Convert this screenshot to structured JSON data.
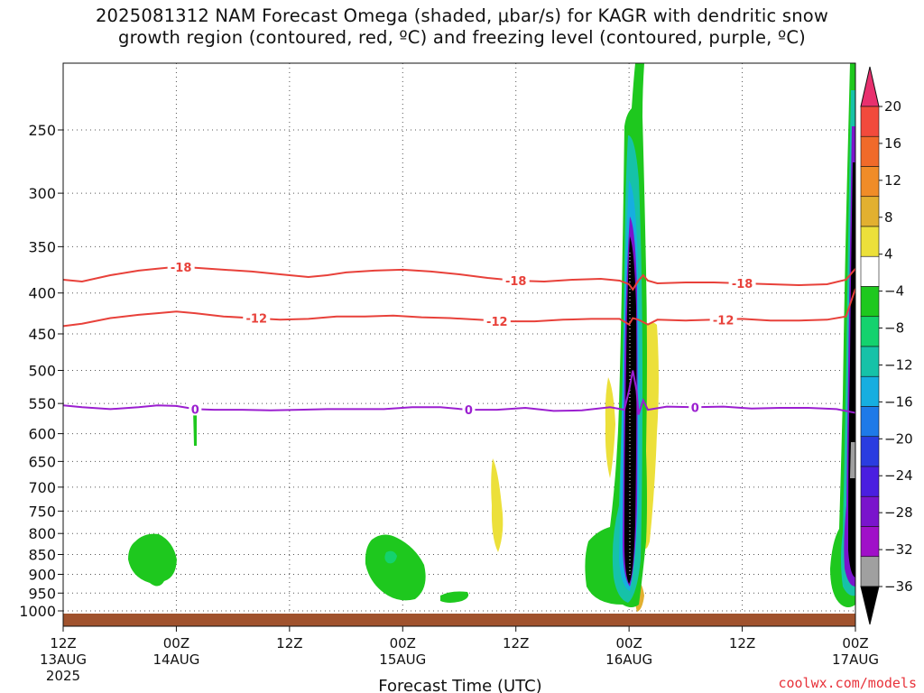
{
  "title_line1": "2025081312 NAM Forecast Omega (shaded, μbar/s) for KAGR with dendritic snow",
  "title_line2": "growth region (contoured, red, ºC) and freezing level (contoured, purple, ºC)",
  "x_axis_title": "Forecast Time (UTC)",
  "credit": "coolwx.com/models",
  "chart_data": {
    "type": "heatmap",
    "x_axis": {
      "unit": "forecast hour",
      "range": [
        0,
        84
      ],
      "ticks": [
        {
          "hour": 0,
          "l1": "12Z",
          "l2": "13AUG",
          "l3": "2025"
        },
        {
          "hour": 12,
          "l1": "00Z",
          "l2": "14AUG",
          "l3": ""
        },
        {
          "hour": 24,
          "l1": "12Z",
          "l2": "",
          "l3": ""
        },
        {
          "hour": 36,
          "l1": "00Z",
          "l2": "15AUG",
          "l3": ""
        },
        {
          "hour": 48,
          "l1": "12Z",
          "l2": "",
          "l3": ""
        },
        {
          "hour": 60,
          "l1": "00Z",
          "l2": "16AUG",
          "l3": ""
        },
        {
          "hour": 72,
          "l1": "12Z",
          "l2": "",
          "l3": ""
        },
        {
          "hour": 84,
          "l1": "00Z",
          "l2": "17AUG",
          "l3": ""
        }
      ]
    },
    "y_axis": {
      "unit": "mb",
      "scale": "pressure (inverted)",
      "range": [
        1040,
        200
      ],
      "ticks": [
        250,
        300,
        350,
        400,
        450,
        500,
        550,
        600,
        650,
        700,
        750,
        800,
        850,
        900,
        950,
        1000
      ]
    },
    "grid": true,
    "colorbar": {
      "unit": "μbar/s",
      "labels": [
        "20",
        "16",
        "12",
        "8",
        "4",
        "−4",
        "−8",
        "−12",
        "−16",
        "−20",
        "−24",
        "−28",
        "−32",
        "−36"
      ],
      "colors": [
        "#e8306e",
        "#f24a3c",
        "#f06a2a",
        "#f08c28",
        "#e2b030",
        "#ece03a",
        "#ffffff",
        "#1ec81e",
        "#14d26e",
        "#16c2a8",
        "#16aee0",
        "#1e7ae8",
        "#2a3ce0",
        "#4a1ee0",
        "#7a14cc",
        "#a010c8",
        "#a0a0a0",
        "#000000"
      ]
    },
    "contours": [
      {
        "label": "-18",
        "color": "#e8413a",
        "label_hours": [
          12.5,
          48,
          72
        ],
        "points": [
          [
            0,
            385
          ],
          [
            2,
            387
          ],
          [
            5,
            380
          ],
          [
            8,
            375
          ],
          [
            10,
            373
          ],
          [
            12,
            371
          ],
          [
            14,
            372
          ],
          [
            17,
            374
          ],
          [
            20,
            376
          ],
          [
            23,
            379
          ],
          [
            26,
            382
          ],
          [
            28,
            380
          ],
          [
            30,
            377
          ],
          [
            33,
            375
          ],
          [
            36,
            374
          ],
          [
            39,
            376
          ],
          [
            42,
            379
          ],
          [
            45,
            383
          ],
          [
            48,
            386
          ],
          [
            51,
            387
          ],
          [
            54,
            385
          ],
          [
            57,
            384
          ],
          [
            59,
            386
          ],
          [
            60,
            390
          ],
          [
            60.4,
            396
          ],
          [
            61,
            386
          ],
          [
            61.5,
            380
          ],
          [
            62,
            386
          ],
          [
            63,
            389
          ],
          [
            66,
            388
          ],
          [
            69,
            388
          ],
          [
            72,
            389
          ],
          [
            75,
            390
          ],
          [
            78,
            391
          ],
          [
            81,
            390
          ],
          [
            83,
            385
          ],
          [
            84,
            373
          ]
        ]
      },
      {
        "label": "-12",
        "color": "#e8413a",
        "label_hours": [
          20.5,
          46,
          70
        ],
        "points": [
          [
            0,
            440
          ],
          [
            2,
            437
          ],
          [
            5,
            430
          ],
          [
            8,
            426
          ],
          [
            10,
            424
          ],
          [
            12,
            422
          ],
          [
            14,
            424
          ],
          [
            17,
            428
          ],
          [
            20,
            430
          ],
          [
            23,
            432
          ],
          [
            26,
            431
          ],
          [
            29,
            428
          ],
          [
            32,
            428
          ],
          [
            35,
            427
          ],
          [
            38,
            429
          ],
          [
            41,
            430
          ],
          [
            44,
            432
          ],
          [
            47,
            434
          ],
          [
            50,
            434
          ],
          [
            53,
            432
          ],
          [
            56,
            431
          ],
          [
            59,
            431
          ],
          [
            60,
            438
          ],
          [
            60.4,
            430
          ],
          [
            61,
            432
          ],
          [
            62,
            438
          ],
          [
            63,
            432
          ],
          [
            66,
            433
          ],
          [
            69,
            432
          ],
          [
            72,
            431
          ],
          [
            75,
            433
          ],
          [
            78,
            433
          ],
          [
            81,
            432
          ],
          [
            83,
            428
          ],
          [
            84,
            395
          ]
        ]
      },
      {
        "label": "0",
        "color": "#9b1fd0",
        "label_hours": [
          14,
          43,
          67
        ],
        "points": [
          [
            0,
            553
          ],
          [
            2,
            556
          ],
          [
            5,
            559
          ],
          [
            8,
            556
          ],
          [
            10,
            553
          ],
          [
            12,
            554
          ],
          [
            14,
            559
          ],
          [
            16,
            560
          ],
          [
            19,
            560
          ],
          [
            22,
            561
          ],
          [
            25,
            560
          ],
          [
            28,
            559
          ],
          [
            31,
            559
          ],
          [
            34,
            559
          ],
          [
            37,
            556
          ],
          [
            40,
            556
          ],
          [
            43,
            560
          ],
          [
            46,
            560
          ],
          [
            49,
            557
          ],
          [
            52,
            562
          ],
          [
            55,
            561
          ],
          [
            58,
            556
          ],
          [
            59.5,
            560
          ],
          [
            60,
            530
          ],
          [
            60.4,
            500
          ],
          [
            60.8,
            530
          ],
          [
            61,
            568
          ],
          [
            61.5,
            545
          ],
          [
            62,
            560
          ],
          [
            64,
            555
          ],
          [
            67,
            556
          ],
          [
            70,
            555
          ],
          [
            73,
            558
          ],
          [
            76,
            557
          ],
          [
            79,
            557
          ],
          [
            82,
            559
          ],
          [
            84,
            565
          ]
        ]
      }
    ]
  }
}
